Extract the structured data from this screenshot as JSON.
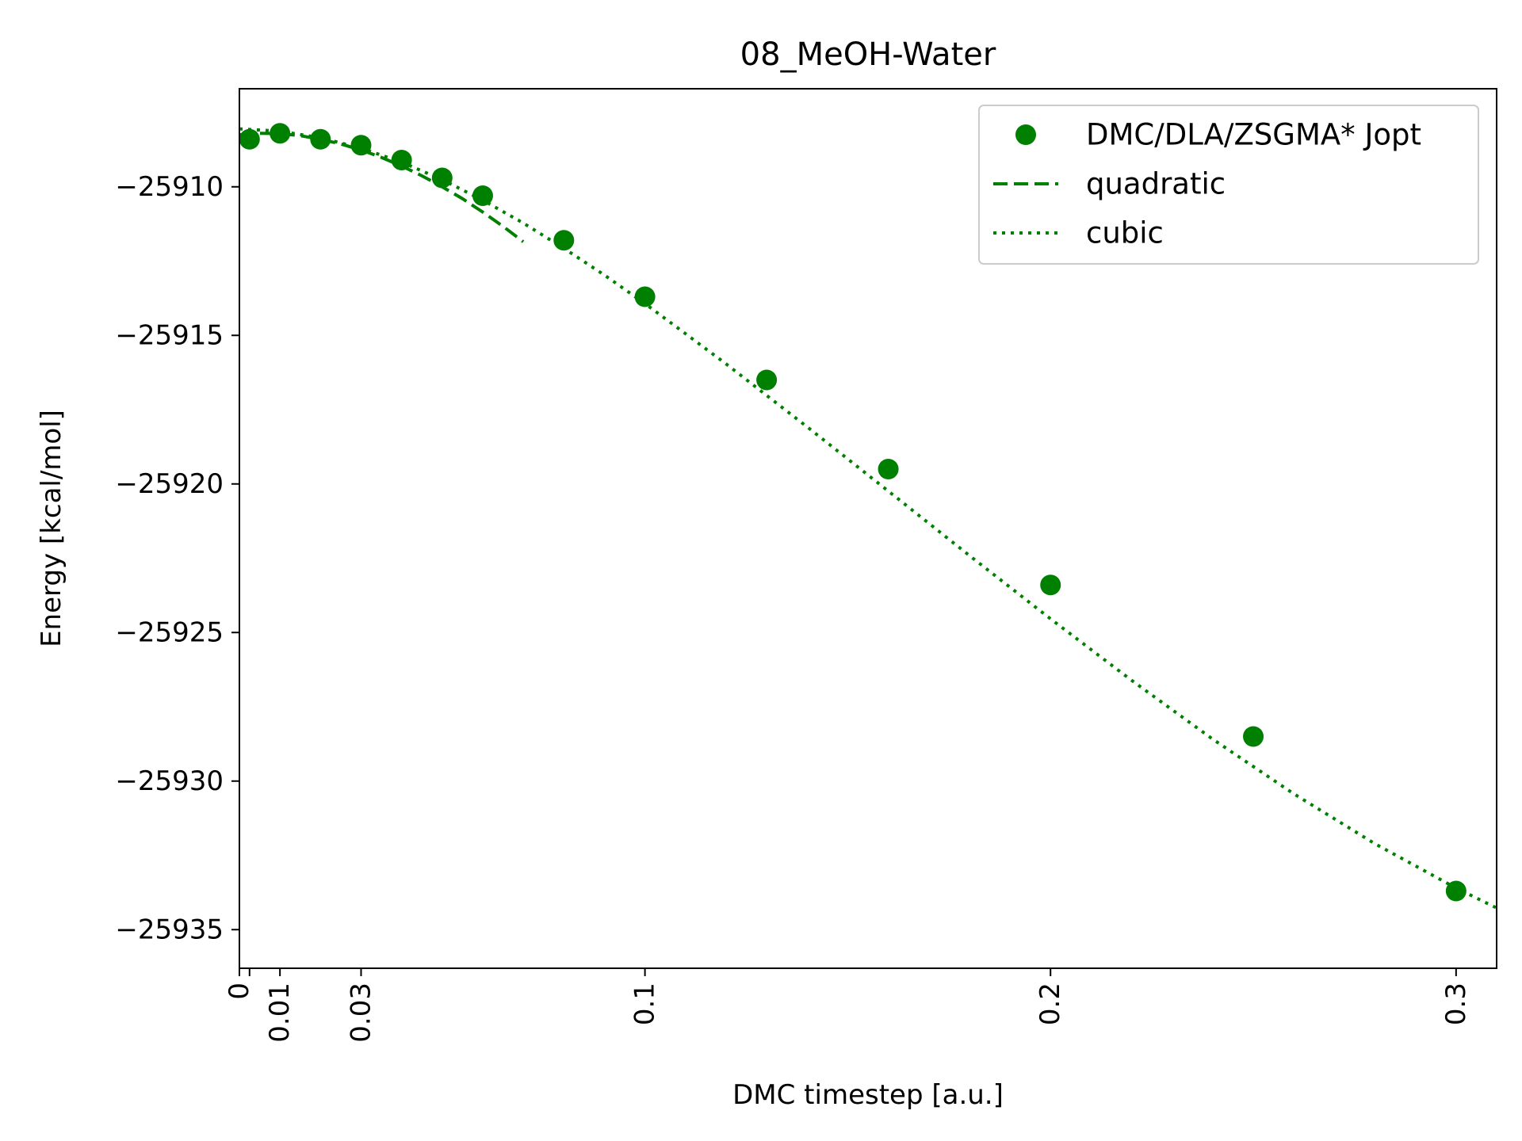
{
  "chart_data": {
    "type": "scatter",
    "title": "08_MeOH-Water",
    "xlabel": "DMC timestep [a.u.]",
    "ylabel": "Energy [kcal/mol]",
    "xlim": [
      0,
      0.31
    ],
    "ylim": [
      -25936.3,
      -25906.7
    ],
    "grid": false,
    "legend_position": "top-right",
    "color": "#008000",
    "x_ticks": [
      {
        "value": 0,
        "label": "0"
      },
      {
        "value": 0.0025,
        "label": ""
      },
      {
        "value": 0.01,
        "label": "0.01"
      },
      {
        "value": 0.03,
        "label": "0.03"
      },
      {
        "value": 0.1,
        "label": "0.1"
      },
      {
        "value": 0.2,
        "label": "0.2"
      },
      {
        "value": 0.3,
        "label": "0.3"
      }
    ],
    "y_ticks": [
      {
        "value": -25910,
        "label": "−25910"
      },
      {
        "value": -25915,
        "label": "−25915"
      },
      {
        "value": -25920,
        "label": "−25920"
      },
      {
        "value": -25925,
        "label": "−25925"
      },
      {
        "value": -25930,
        "label": "−25930"
      },
      {
        "value": -25935,
        "label": "−25935"
      }
    ],
    "series": [
      {
        "name": "DMC/DLA/ZSGMA* Jopt",
        "style": "markers",
        "x": [
          0.0025,
          0.01,
          0.02,
          0.03,
          0.04,
          0.05,
          0.06,
          0.08,
          0.1,
          0.13,
          0.16,
          0.2,
          0.25,
          0.3
        ],
        "y": [
          -25908.4,
          -25908.2,
          -25908.4,
          -25908.6,
          -25909.1,
          -25909.7,
          -25910.3,
          -25911.8,
          -25913.7,
          -25916.5,
          -25919.5,
          -25923.4,
          -25928.5,
          -25933.7
        ]
      },
      {
        "name": "quadratic",
        "style": "dashed",
        "x": [
          0,
          0.005,
          0.01,
          0.015,
          0.02,
          0.025,
          0.03,
          0.035,
          0.04,
          0.045,
          0.05,
          0.055,
          0.06,
          0.065,
          0.07
        ],
        "y": [
          -25908.25,
          -25908.2,
          -25908.21,
          -25908.28,
          -25908.4,
          -25908.56,
          -25908.76,
          -25909.01,
          -25909.3,
          -25909.63,
          -25910.0,
          -25910.4,
          -25910.85,
          -25911.33,
          -25911.85
        ]
      },
      {
        "name": "cubic",
        "style": "dotted",
        "x": [
          0,
          0.01,
          0.02,
          0.03,
          0.04,
          0.05,
          0.06,
          0.07,
          0.08,
          0.09,
          0.1,
          0.12,
          0.14,
          0.16,
          0.18,
          0.2,
          0.22,
          0.24,
          0.26,
          0.28,
          0.3,
          0.31
        ],
        "y": [
          -25908.05,
          -25908.13,
          -25908.35,
          -25908.7,
          -25909.17,
          -25909.76,
          -25910.45,
          -25911.22,
          -25912.07,
          -25912.97,
          -25913.93,
          -25915.96,
          -25918.08,
          -25920.24,
          -25922.41,
          -25924.54,
          -25926.61,
          -25928.59,
          -25930.43,
          -25932.11,
          -25933.6,
          -25934.27
        ]
      }
    ]
  }
}
